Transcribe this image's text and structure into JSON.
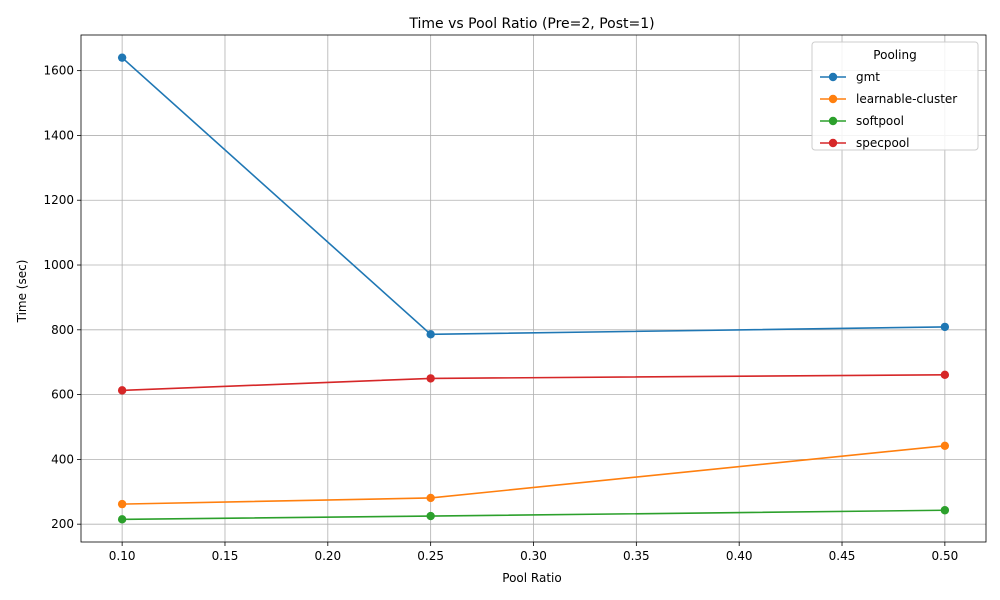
{
  "chart_data": {
    "type": "line",
    "title": "Time vs Pool Ratio (Pre=2, Post=1)",
    "xlabel": "Pool Ratio",
    "ylabel": "Time (sec)",
    "x": [
      0.1,
      0.25,
      0.5
    ],
    "xlim": [
      0.08,
      0.52
    ],
    "ylim": [
      145,
      1710
    ],
    "xticks": [
      0.1,
      0.15,
      0.2,
      0.25,
      0.3,
      0.35,
      0.4,
      0.45,
      0.5
    ],
    "xtick_labels": [
      "0.10",
      "0.15",
      "0.20",
      "0.25",
      "0.30",
      "0.35",
      "0.40",
      "0.45",
      "0.50"
    ],
    "yticks": [
      200,
      400,
      600,
      800,
      1000,
      1200,
      1400,
      1600
    ],
    "ytick_labels": [
      "200",
      "400",
      "600",
      "800",
      "1000",
      "1200",
      "1400",
      "1600"
    ],
    "grid": true,
    "legend": {
      "title": "Pooling",
      "placement": "top-right"
    },
    "series": [
      {
        "name": "gmt",
        "color": "#1f77b4",
        "values": [
          1640,
          786,
          809
        ]
      },
      {
        "name": "learnable-cluster",
        "color": "#ff7f0e",
        "values": [
          262,
          281,
          442
        ]
      },
      {
        "name": "softpool",
        "color": "#2ca02c",
        "values": [
          215,
          225,
          243
        ]
      },
      {
        "name": "specpool",
        "color": "#d62728",
        "values": [
          613,
          650,
          661
        ]
      }
    ]
  }
}
